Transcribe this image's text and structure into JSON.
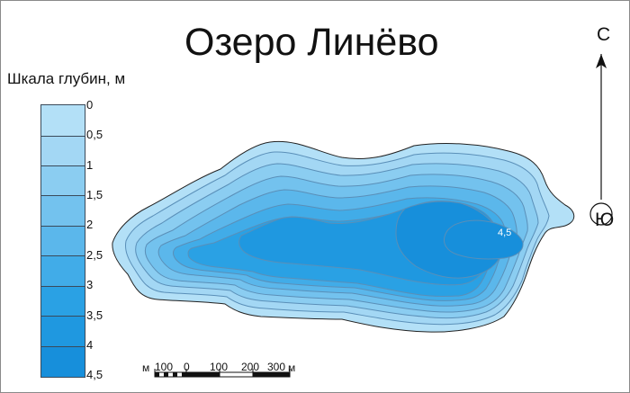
{
  "map_title": "Озеро Линёво",
  "legend": {
    "title": "Шкала глубин, м",
    "levels": [
      {
        "label": "0",
        "color": "#b3e0f7"
      },
      {
        "label": "0,5",
        "color": "#a3d7f4"
      },
      {
        "label": "1",
        "color": "#8bcdf1"
      },
      {
        "label": "1,5",
        "color": "#73c2ee"
      },
      {
        "label": "2",
        "color": "#5bb7eb"
      },
      {
        "label": "2,5",
        "color": "#41ace8"
      },
      {
        "label": "3",
        "color": "#2aa1e4"
      },
      {
        "label": "3,5",
        "color": "#1f98e0"
      },
      {
        "label": "4",
        "color": "#178fdb"
      },
      {
        "label": "4,5",
        "color": ""
      }
    ]
  },
  "lake": {
    "max_depth_label": "4,5",
    "outline_color": "#222222"
  },
  "compass": {
    "north": "С",
    "south": "Ю"
  },
  "scale_bar": {
    "unit": "м",
    "ticks": [
      "100",
      "0",
      "100",
      "200",
      "300"
    ]
  }
}
